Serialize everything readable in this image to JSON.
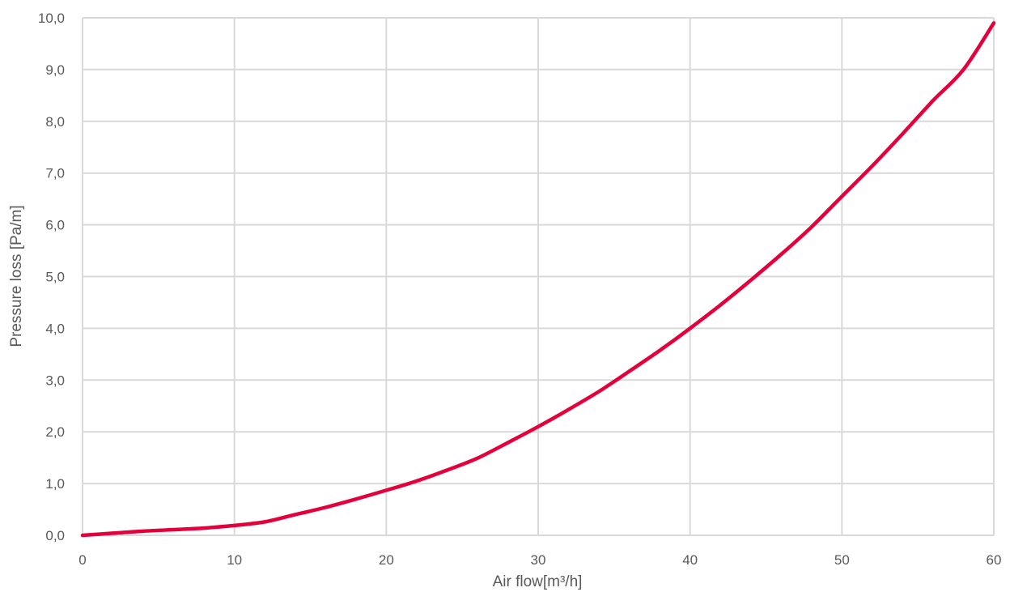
{
  "chart_data": {
    "type": "line",
    "title": "",
    "xlabel": "Air flow[m³/h]",
    "ylabel": "Pressure loss [Pa/m]",
    "xlim": [
      0,
      60
    ],
    "ylim": [
      0,
      10
    ],
    "x_ticks": [
      "0",
      "10",
      "20",
      "30",
      "40",
      "50",
      "60"
    ],
    "y_ticks": [
      "0,0",
      "1,0",
      "2,0",
      "3,0",
      "4,0",
      "5,0",
      "6,0",
      "7,0",
      "8,0",
      "9,0",
      "10,0"
    ],
    "grid": true,
    "series": [
      {
        "color": "#e3003b",
        "x": [
          0,
          2,
          4,
          6,
          8,
          10,
          12,
          14,
          16,
          18,
          20,
          22,
          24,
          26,
          28,
          30,
          32,
          34,
          36,
          38,
          40,
          42,
          44,
          46,
          48,
          50,
          52,
          54,
          56,
          58,
          60
        ],
        "y": [
          0,
          0.04,
          0.08,
          0.11,
          0.14,
          0.19,
          0.26,
          0.4,
          0.54,
          0.7,
          0.87,
          1.05,
          1.26,
          1.49,
          1.79,
          2.1,
          2.43,
          2.78,
          3.17,
          3.57,
          4.0,
          4.45,
          4.93,
          5.43,
          5.96,
          6.55,
          7.14,
          7.76,
          8.4,
          9.0,
          9.9
        ]
      }
    ]
  }
}
